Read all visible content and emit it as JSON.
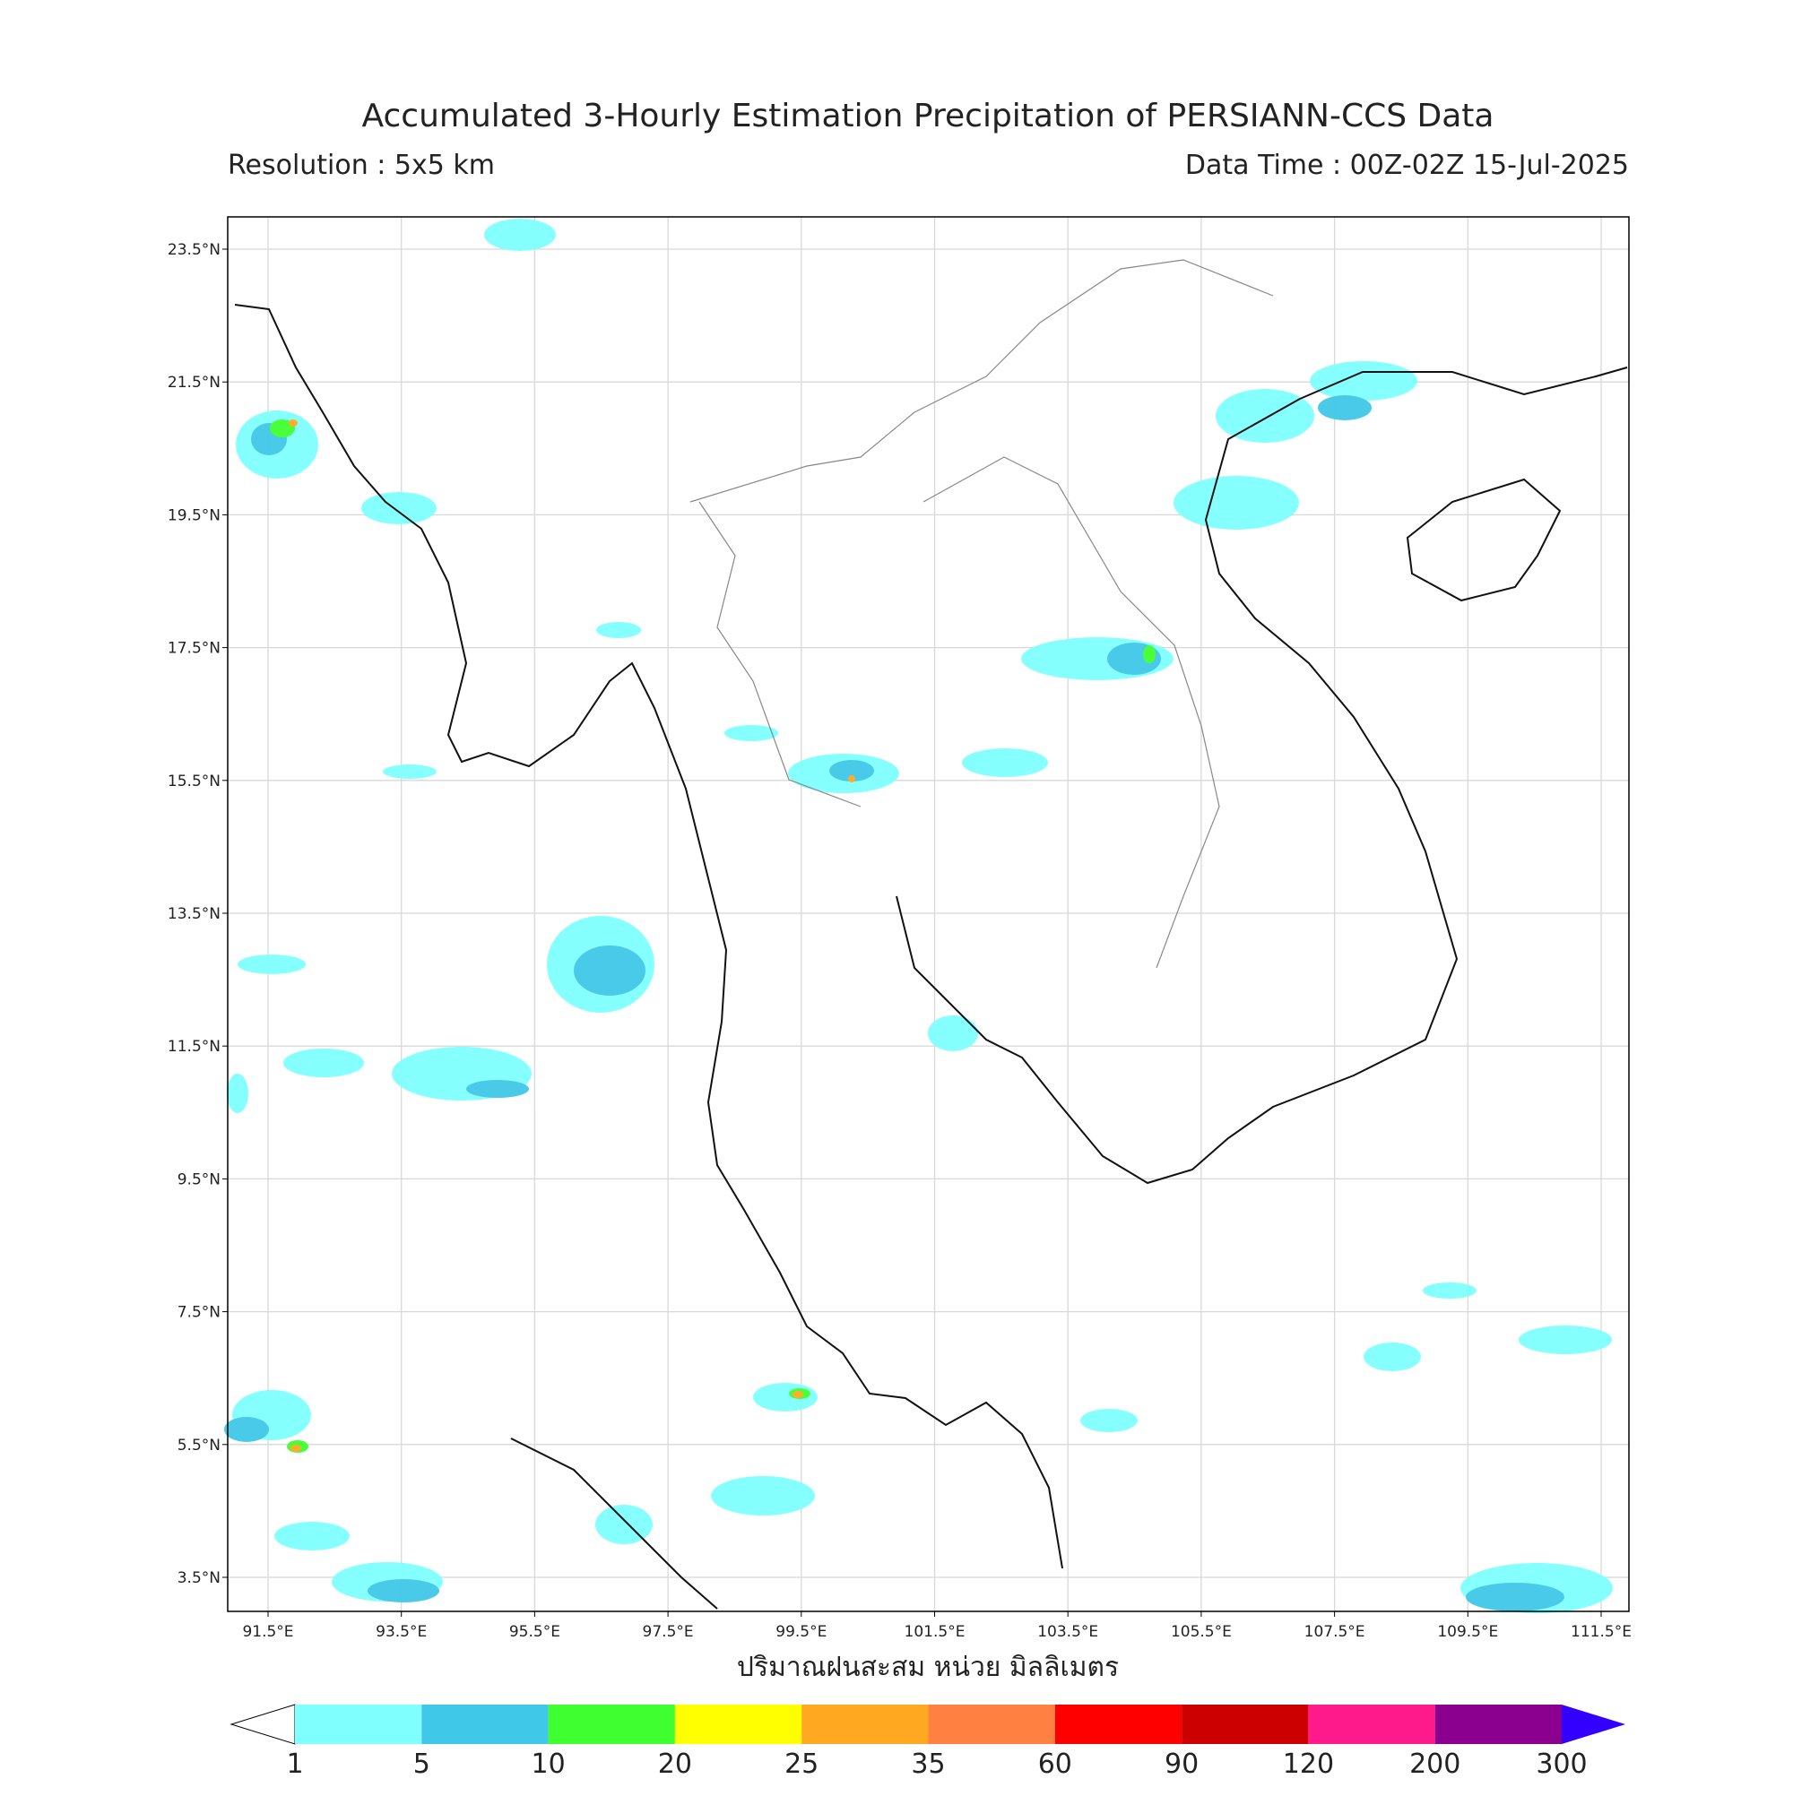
{
  "map": {
    "title": "Accumulated 3-Hourly Estimation Precipitation of PERSIANN-CCS Data",
    "resolution": "Resolution : 5x5 km",
    "data_time": "Data Time : 00Z-02Z 15-Jul-2025",
    "x_axis_label": "ปริมาณฝนสะสม หน่วย มิลลิเมตร",
    "lon_ticks": [
      "91.5°E",
      "93.5°E",
      "95.5°E",
      "97.5°E",
      "99.5°E",
      "101.5°E",
      "103.5°E",
      "105.5°E",
      "107.5°E",
      "109.5°E",
      "111.5°E"
    ],
    "lat_ticks": [
      "23.5°N",
      "21.5°N",
      "19.5°N",
      "17.5°N",
      "15.5°N",
      "13.5°N",
      "11.5°N",
      "9.5°N",
      "7.5°N",
      "5.5°N",
      "3.5°N"
    ],
    "colorbar": {
      "levels": [
        1,
        5,
        10,
        20,
        25,
        35,
        60,
        90,
        120,
        200,
        300
      ],
      "colors": [
        "#80ffff",
        "#40c8e8",
        "#40ff30",
        "#ffff00",
        "#ffa820",
        "#ff8040",
        "#ff0000",
        "#cc0000",
        "#ff1a8c",
        "#8c0090"
      ],
      "extend_color": "#3300ff"
    }
  }
}
